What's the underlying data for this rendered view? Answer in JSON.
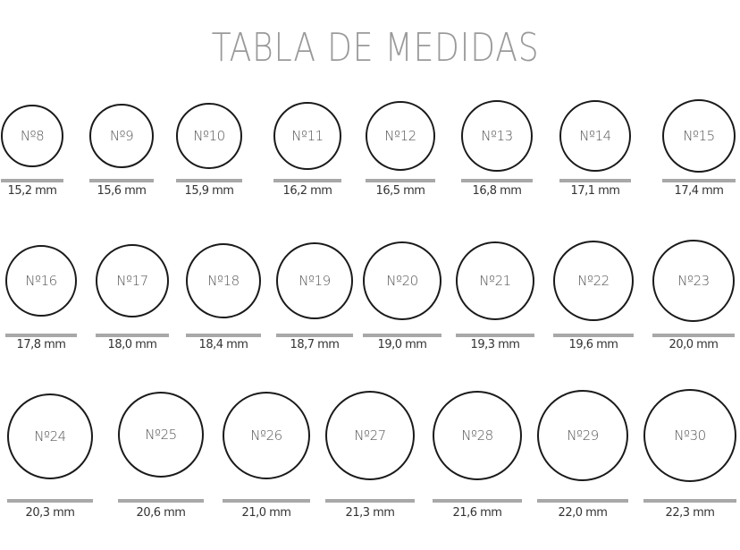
{
  "title": "TABLA DE MEDIDAS",
  "sizes": [
    {
      "label": "Nº8",
      "diameter": "15,2 mm"
    },
    {
      "label": "Nº9",
      "diameter": "15,6 mm"
    },
    {
      "label": "Nº10",
      "diameter": "15,9 mm"
    },
    {
      "label": "Nº11",
      "diameter": "16,2 mm"
    },
    {
      "label": "Nº12",
      "diameter": "16,5 mm"
    },
    {
      "label": "Nº13",
      "diameter": "16,8 mm"
    },
    {
      "label": "Nº14",
      "diameter": "17,1 mm"
    },
    {
      "label": "Nº15",
      "diameter": "17,4 mm"
    },
    {
      "label": "Nº16",
      "diameter": "17,8 mm"
    },
    {
      "label": "Nº17",
      "diameter": "18,0 mm"
    },
    {
      "label": "Nº18",
      "diameter": "18,4 mm"
    },
    {
      "label": "Nº19",
      "diameter": "18,7 mm"
    },
    {
      "label": "Nº20",
      "diameter": "19,0 mm"
    },
    {
      "label": "Nº21",
      "diameter": "19,3 mm"
    },
    {
      "label": "Nº22",
      "diameter": "19,6 mm"
    },
    {
      "label": "Nº23",
      "diameter": "20,0 mm"
    },
    {
      "label": "Nº24",
      "diameter": "20,3 mm"
    },
    {
      "label": "Nº25",
      "diameter": "20,6 mm"
    },
    {
      "label": "Nº26",
      "diameter": "21,0 mm"
    },
    {
      "label": "Nº27",
      "diameter": "21,3 mm"
    },
    {
      "label": "Nº28",
      "diameter": "21,6 mm"
    },
    {
      "label": "Nº29",
      "diameter": "22,0 mm"
    },
    {
      "label": "Nº30",
      "diameter": "22,3 mm"
    }
  ],
  "colors": {
    "title": "#9a9a9a",
    "ring": "#1a1a1a",
    "bar": "#a8a8a8"
  }
}
